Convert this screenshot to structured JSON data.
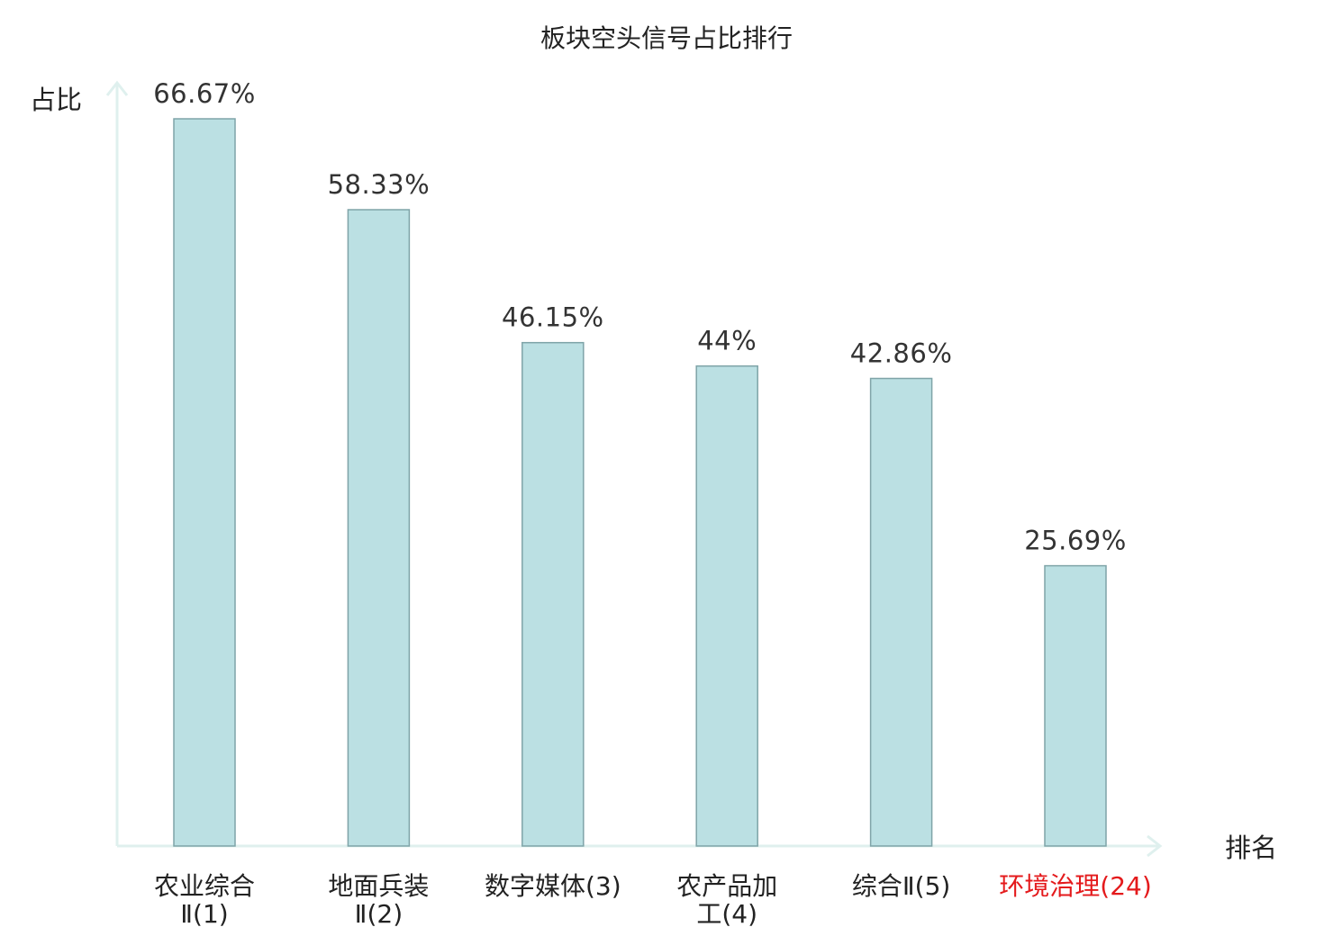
{
  "chart_data": {
    "type": "bar",
    "title": "板块空头信号占比排行",
    "ylabel": "占比",
    "xlabel": "排名",
    "ylim": [
      0,
      70
    ],
    "grid": false,
    "categories": [
      {
        "name": "农业综合",
        "rank": "Ⅱ(1)",
        "highlight": false
      },
      {
        "name": "地面兵装",
        "rank": "Ⅱ(2)",
        "highlight": false
      },
      {
        "name": "数字媒体",
        "rank": "(3)",
        "highlight": false
      },
      {
        "name": "农产品加",
        "rank": "工(4)",
        "highlight": false
      },
      {
        "name": "综合",
        "rank": "Ⅱ(5)",
        "highlight": false
      },
      {
        "name": "环境治理",
        "rank": "(24)",
        "highlight": true
      }
    ],
    "values": [
      66.67,
      58.33,
      46.15,
      44,
      42.86,
      25.69
    ],
    "value_labels": [
      "66.67%",
      "58.33%",
      "46.15%",
      "44%",
      "42.86%",
      "25.69%"
    ],
    "colors": {
      "bar_fill": "#bbe0e3",
      "bar_stroke": "#7fa4a8",
      "axis": "#dff0ee",
      "label": "#222222",
      "highlight": "#e41a1c"
    }
  }
}
